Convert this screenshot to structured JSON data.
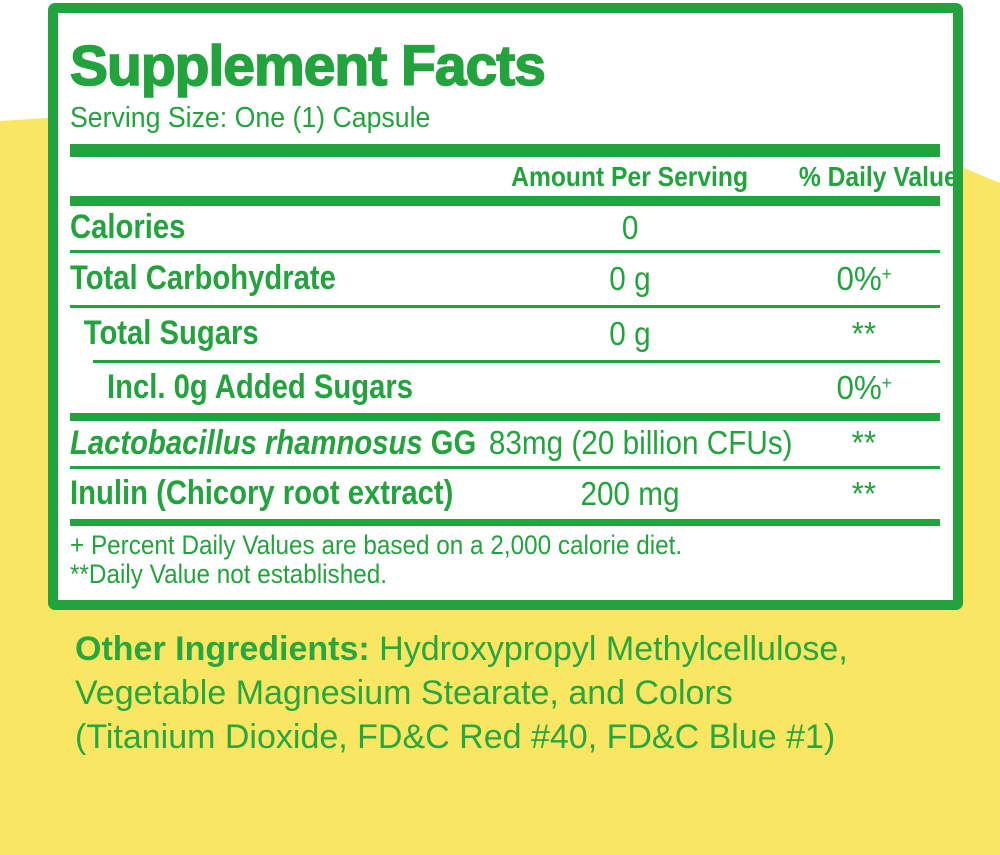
{
  "colors": {
    "green": "#23a33d",
    "yellow": "#f9e763",
    "card_background": "#ffffff"
  },
  "panel": {
    "title": "Supplement Facts",
    "serving_size": "Serving Size: One (1) Capsule",
    "columns": {
      "amount_header": "Amount Per Serving",
      "daily_value_header": "% Daily Value"
    },
    "rows": [
      {
        "label": "Calories",
        "amount": "0",
        "daily_value": "",
        "indent": 0,
        "separator_after": "thin"
      },
      {
        "label": "Total Carbohydrate",
        "amount": "0 g",
        "daily_value": "0%",
        "daily_value_sup": "+",
        "indent": 0,
        "separator_after": "thin"
      },
      {
        "label": "Total Sugars",
        "amount": "0 g",
        "daily_value": "**",
        "indent": 1,
        "separator_after": "thin indent"
      },
      {
        "label": "Incl. 0g Added Sugars",
        "amount": "",
        "daily_value": "0%",
        "daily_value_sup": "+",
        "indent": 2,
        "separator_after": "bar"
      },
      {
        "label_italic": "Lactobacillus rhamnosus",
        "label": " GG",
        "amount": "83mg (20 billion CFUs)",
        "daily_value": "**",
        "indent": 0,
        "separator_after": "thin"
      },
      {
        "label": "Inulin (Chicory root extract)",
        "amount": "200 mg",
        "daily_value": "**",
        "indent": 0,
        "separator_after": "bar mid"
      }
    ],
    "footnotes": [
      "+ Percent Daily Values are based on a 2,000 calorie diet.",
      "**Daily Value not established."
    ]
  },
  "other_ingredients": {
    "label": "Other Ingredients:",
    "lines": [
      " Hydroxypropyl Methylcellulose,",
      "Vegetable Magnesium Stearate, and Colors",
      "(Titanium Dioxide, FD&C Red #40, FD&C Blue #1)"
    ]
  }
}
